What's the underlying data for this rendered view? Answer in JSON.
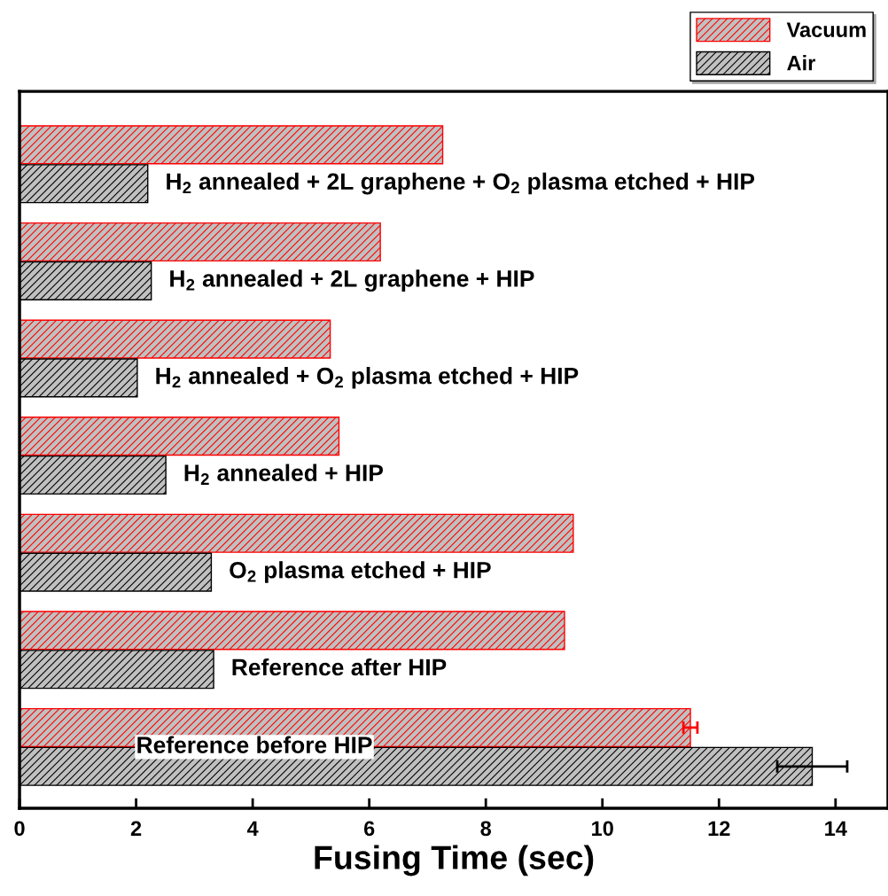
{
  "chart_data": {
    "type": "bar",
    "orientation": "horizontal",
    "xlabel": "Fusing Time (sec)",
    "categories": [
      "H$_{2}$ annealed + 2L graphene + O$_{2}$ plasma etched + HIP",
      "H$_{2}$ annealed + 2L graphene + HIP",
      "H$_{2}$ annealed + O$_{2}$ plasma etched + HIP",
      "H$_{2}$ annealed + HIP",
      "O$_{2}$ plasma etched + HIP",
      "Reference after HIP",
      "Reference before HIP"
    ],
    "series": [
      {
        "name": "Vacuum",
        "color": "#ff0000",
        "values": [
          7.26,
          6.19,
          5.33,
          5.48,
          9.5,
          9.35,
          11.51
        ],
        "errors": [
          null,
          null,
          null,
          null,
          null,
          null,
          0.12
        ]
      },
      {
        "name": "Air",
        "color": "#000000",
        "values": [
          2.2,
          2.26,
          2.02,
          2.51,
          3.29,
          3.33,
          13.6
        ],
        "errors": [
          null,
          null,
          null,
          null,
          null,
          null,
          0.6
        ]
      }
    ],
    "xlim": [
      0,
      14.9
    ],
    "xticks": [
      0,
      2,
      4,
      6,
      8,
      10,
      12,
      14
    ],
    "tick_labels": "x",
    "grid": false,
    "legend": "top right"
  }
}
